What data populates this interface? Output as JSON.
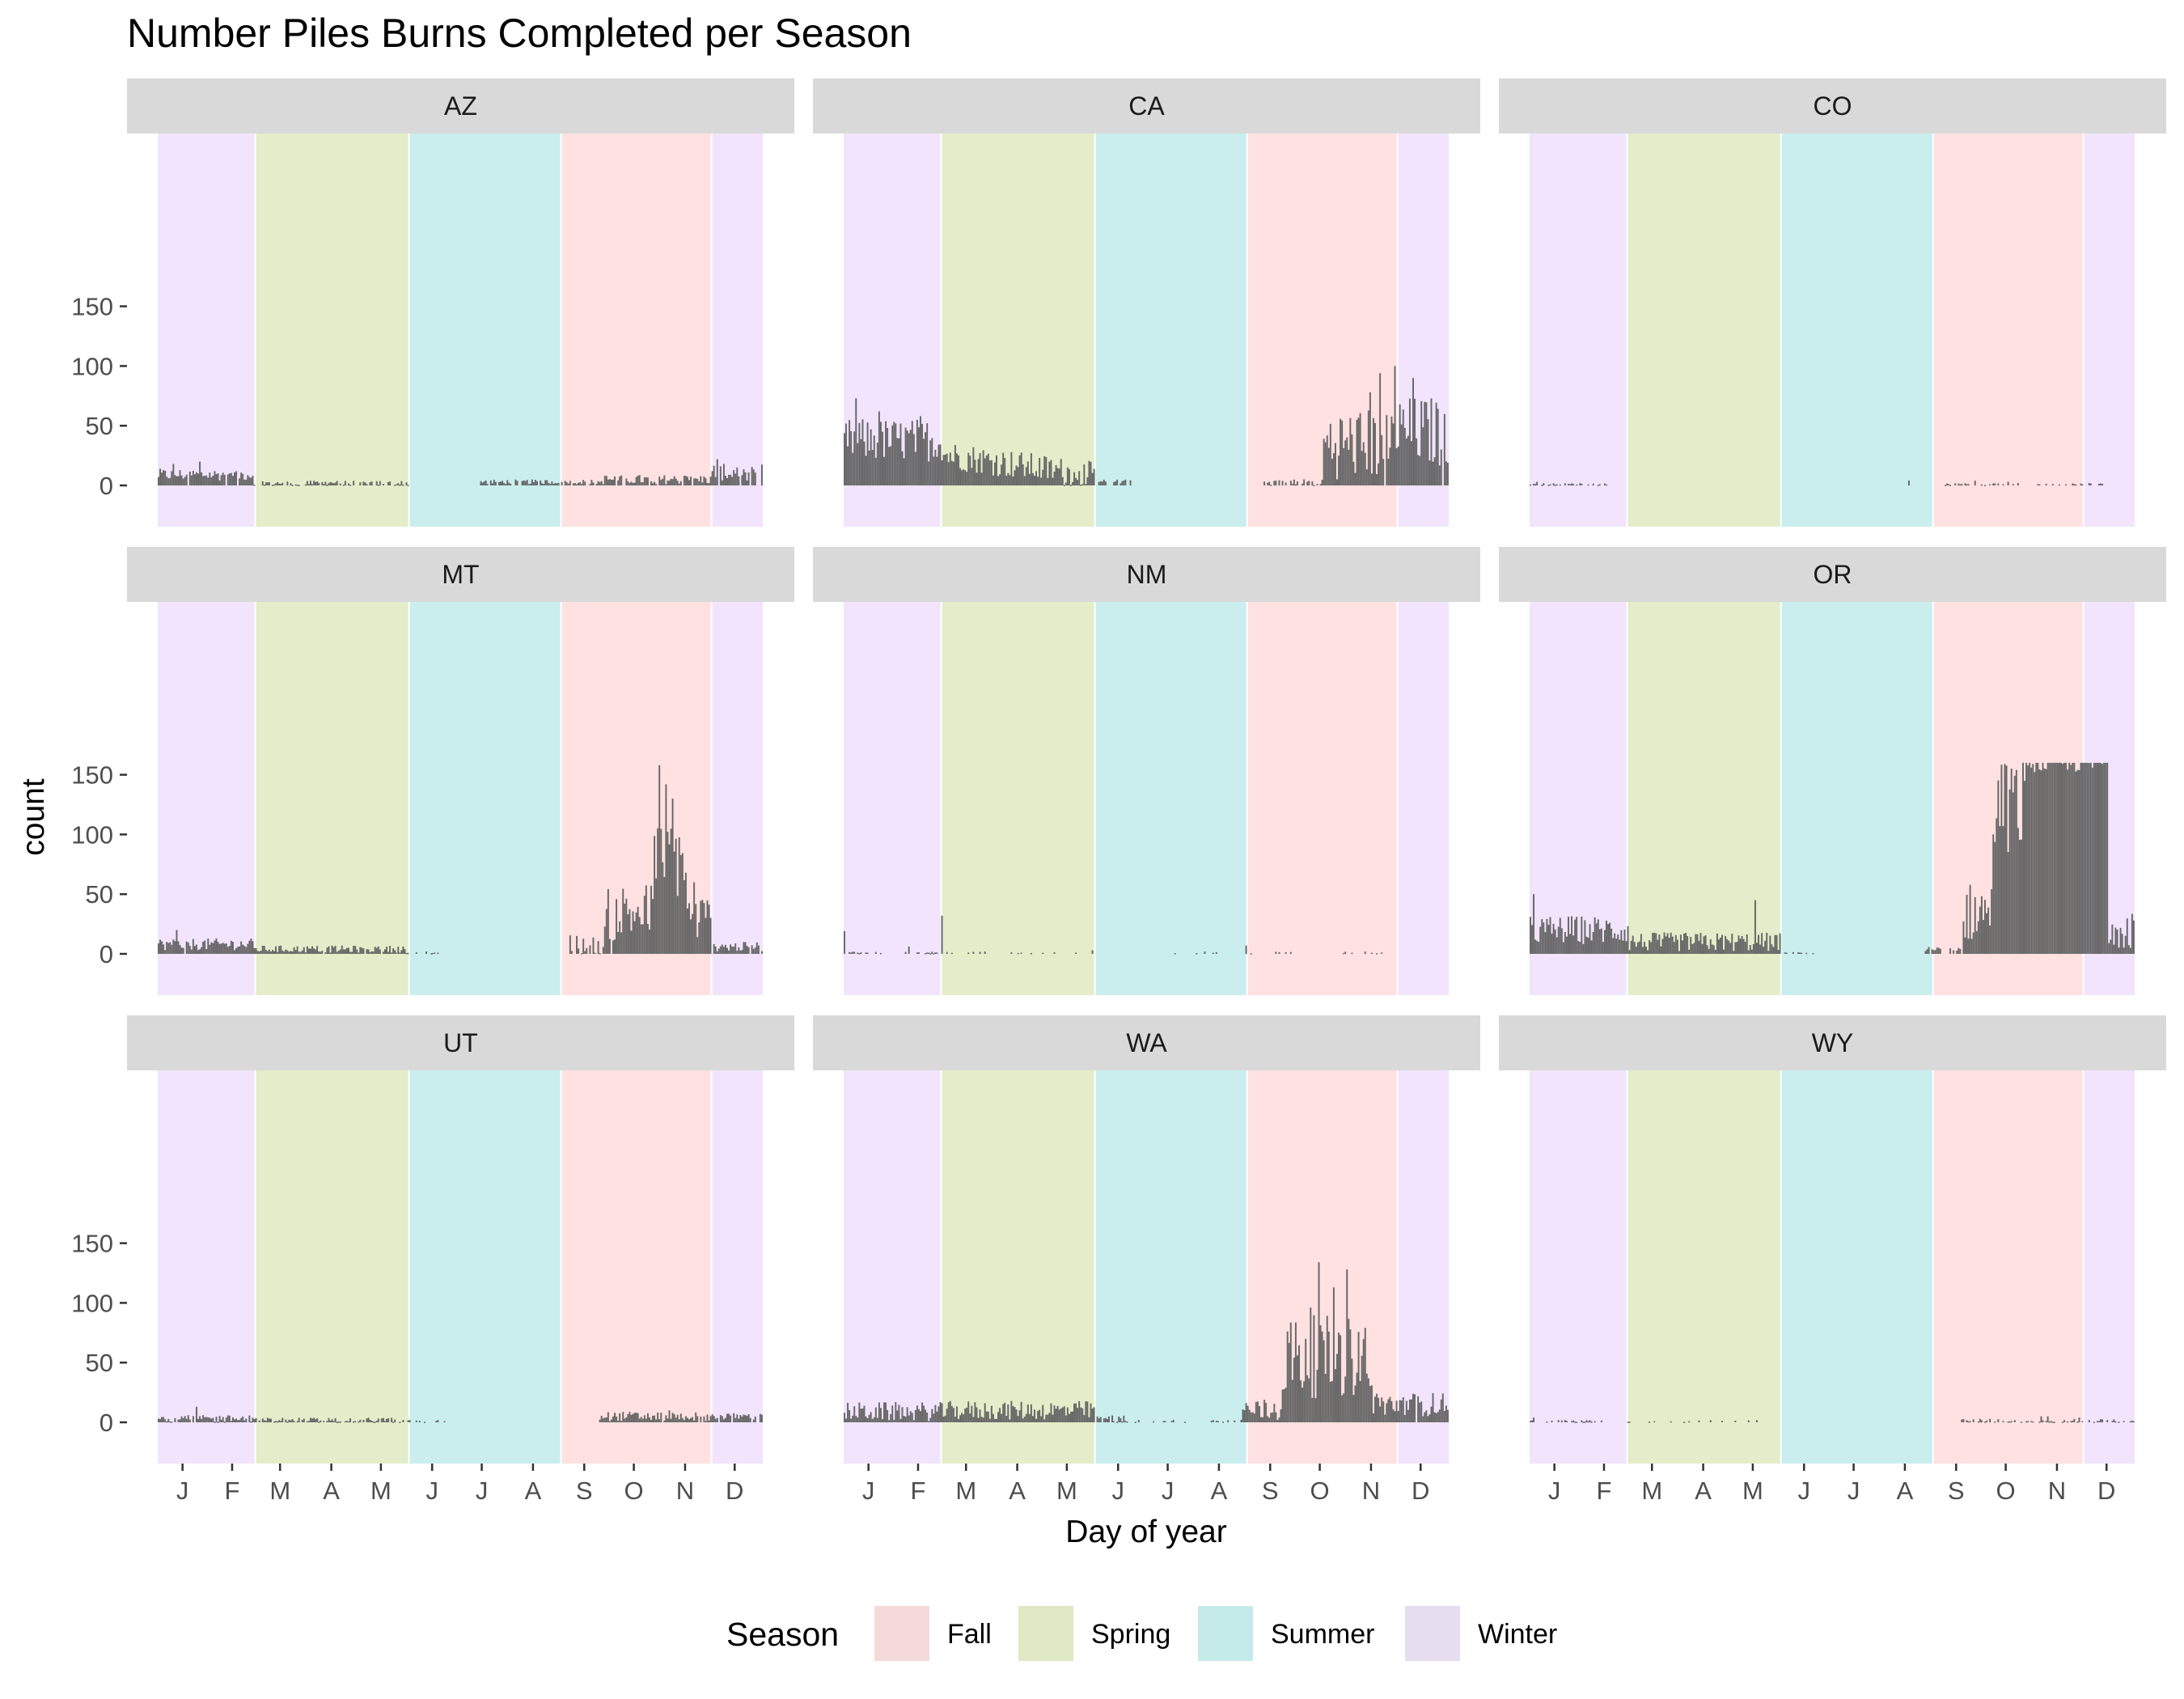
{
  "chart_data": {
    "type": "bar",
    "title": "Number Piles Burns Completed per Season",
    "xlabel": "Day of year",
    "ylabel": "count",
    "ylim": [
      0,
      160
    ],
    "xlim": [
      1,
      366
    ],
    "y_ticks": [
      0,
      50,
      100,
      150
    ],
    "x_tick_labels": [
      "J",
      "F",
      "M",
      "A",
      "M",
      "J",
      "J",
      "A",
      "S",
      "O",
      "N",
      "D"
    ],
    "x_tick_days": [
      16,
      46,
      75,
      106,
      136,
      167,
      197,
      228,
      259,
      289,
      320,
      350
    ],
    "grid": false,
    "legend_position": "bottom",
    "legend_title": "Season",
    "seasons": [
      {
        "name": "Fall",
        "color": "#FFE1E1",
        "legend_color": "#F5DADA",
        "ranges": [
          [
            245,
            335
          ]
        ]
      },
      {
        "name": "Spring",
        "color": "#E3EDC9",
        "legend_color": "#E0E8C6",
        "ranges": [
          [
            60,
            152
          ]
        ]
      },
      {
        "name": "Summer",
        "color": "#CAEEEE",
        "legend_color": "#C5EAEA",
        "ranges": [
          [
            153,
            244
          ]
        ]
      },
      {
        "name": "Winter",
        "color": "#F1E4FC",
        "legend_color": "#E6DDF1",
        "ranges": [
          [
            1,
            59
          ],
          [
            336,
            366
          ]
        ]
      }
    ],
    "bar_color": "#666666",
    "panels": [
      {
        "name": "AZ",
        "segments": [
          {
            "from": 1,
            "to": 58,
            "level": 9,
            "amp": 5,
            "density": 0.95
          },
          {
            "from": 59,
            "to": 152,
            "level": 2,
            "amp": 2,
            "density": 0.7
          },
          {
            "from": 195,
            "to": 270,
            "level": 3,
            "amp": 2,
            "density": 0.8
          },
          {
            "from": 271,
            "to": 335,
            "level": 5,
            "amp": 4,
            "density": 0.85
          },
          {
            "from": 336,
            "to": 366,
            "level": 11,
            "amp": 7,
            "density": 0.9
          }
        ],
        "spikes": [
          [
            10,
            18
          ],
          [
            26,
            20
          ],
          [
            339,
            22
          ],
          [
            351,
            15
          ]
        ]
      },
      {
        "name": "CA",
        "segments": [
          {
            "from": 1,
            "to": 60,
            "level": 38,
            "amp": 18,
            "density": 1
          },
          {
            "from": 61,
            "to": 152,
            "level": 26,
            "amp": 12,
            "density": 1,
            "end_level": 8
          },
          {
            "from": 153,
            "to": 175,
            "level": 3,
            "amp": 2,
            "density": 0.6
          },
          {
            "from": 255,
            "to": 290,
            "level": 3,
            "amp": 3,
            "density": 0.6
          },
          {
            "from": 291,
            "to": 335,
            "level": 35,
            "amp": 30,
            "density": 0.95
          },
          {
            "from": 336,
            "to": 366,
            "level": 45,
            "amp": 30,
            "density": 0.95
          }
        ],
        "spikes": [
          [
            8,
            73
          ],
          [
            22,
            62
          ],
          [
            47,
            58
          ],
          [
            319,
            78
          ],
          [
            325,
            94
          ],
          [
            334,
            100
          ],
          [
            345,
            90
          ]
        ]
      },
      {
        "name": "CO",
        "segments": [
          {
            "from": 1,
            "to": 50,
            "level": 1,
            "amp": 1,
            "density": 0.5
          },
          {
            "from": 250,
            "to": 350,
            "level": 1,
            "amp": 1,
            "density": 0.25
          }
        ],
        "spikes": [
          [
            5,
            3
          ],
          [
            230,
            4
          ],
          [
            270,
            4
          ],
          [
            290,
            3
          ]
        ]
      },
      {
        "name": "MT",
        "segments": [
          {
            "from": 1,
            "to": 58,
            "level": 8,
            "amp": 5,
            "density": 0.95
          },
          {
            "from": 59,
            "to": 150,
            "level": 4,
            "amp": 3,
            "density": 0.95
          },
          {
            "from": 151,
            "to": 170,
            "level": 1,
            "amp": 1,
            "density": 0.5
          },
          {
            "from": 250,
            "to": 270,
            "level": 8,
            "amp": 8,
            "density": 0.7
          },
          {
            "from": 271,
            "to": 300,
            "level": 35,
            "amp": 25,
            "density": 0.95
          },
          {
            "from": 301,
            "to": 320,
            "level": 80,
            "amp": 35,
            "density": 1
          },
          {
            "from": 321,
            "to": 335,
            "level": 30,
            "amp": 20,
            "density": 0.95
          },
          {
            "from": 336,
            "to": 366,
            "level": 6,
            "amp": 4,
            "density": 0.9
          }
        ],
        "spikes": [
          [
            12,
            20
          ],
          [
            304,
            158
          ],
          [
            308,
            142
          ],
          [
            312,
            130
          ],
          [
            325,
            60
          ]
        ]
      },
      {
        "name": "NM",
        "segments": [
          {
            "from": 1,
            "to": 60,
            "level": 1,
            "amp": 1,
            "density": 0.35
          },
          {
            "from": 61,
            "to": 150,
            "level": 1,
            "amp": 1,
            "density": 0.15
          },
          {
            "from": 200,
            "to": 330,
            "level": 1,
            "amp": 1,
            "density": 0.1
          }
        ],
        "spikes": [
          [
            1,
            19
          ],
          [
            40,
            6
          ],
          [
            60,
            32
          ],
          [
            151,
            3
          ],
          [
            244,
            7
          ]
        ]
      },
      {
        "name": "OR",
        "segments": [
          {
            "from": 1,
            "to": 60,
            "level": 20,
            "amp": 12,
            "density": 1
          },
          {
            "from": 61,
            "to": 152,
            "level": 10,
            "amp": 8,
            "density": 1
          },
          {
            "from": 153,
            "to": 175,
            "level": 1,
            "amp": 1,
            "density": 0.3
          },
          {
            "from": 240,
            "to": 262,
            "level": 3,
            "amp": 3,
            "density": 0.5
          },
          {
            "from": 263,
            "to": 280,
            "level": 35,
            "amp": 25,
            "density": 1
          },
          {
            "from": 281,
            "to": 300,
            "level": 125,
            "amp": 40,
            "density": 1
          },
          {
            "from": 301,
            "to": 350,
            "level": 160,
            "amp": 8,
            "density": 1
          },
          {
            "from": 351,
            "to": 366,
            "level": 25,
            "amp": 20,
            "density": 1
          }
        ],
        "spikes": [
          [
            3,
            50
          ],
          [
            137,
            45
          ],
          [
            348,
            158
          ]
        ]
      },
      {
        "name": "UT",
        "segments": [
          {
            "from": 1,
            "to": 60,
            "level": 3,
            "amp": 3,
            "density": 0.9
          },
          {
            "from": 61,
            "to": 150,
            "level": 2,
            "amp": 2,
            "density": 0.8
          },
          {
            "from": 151,
            "to": 175,
            "level": 1,
            "amp": 1,
            "density": 0.2
          },
          {
            "from": 268,
            "to": 335,
            "level": 5,
            "amp": 4,
            "density": 0.95
          },
          {
            "from": 336,
            "to": 366,
            "level": 5,
            "amp": 3,
            "density": 0.9
          }
        ],
        "spikes": [
          [
            24,
            13
          ],
          [
            310,
            10
          ]
        ]
      },
      {
        "name": "WA",
        "segments": [
          {
            "from": 1,
            "to": 60,
            "level": 9,
            "amp": 8,
            "density": 1
          },
          {
            "from": 61,
            "to": 152,
            "level": 10,
            "amp": 8,
            "density": 1
          },
          {
            "from": 153,
            "to": 170,
            "level": 3,
            "amp": 3,
            "density": 0.7
          },
          {
            "from": 171,
            "to": 240,
            "level": 1,
            "amp": 1,
            "density": 0.2
          },
          {
            "from": 241,
            "to": 265,
            "level": 10,
            "amp": 10,
            "density": 0.9
          },
          {
            "from": 266,
            "to": 320,
            "level": 55,
            "amp": 35,
            "density": 1
          },
          {
            "from": 321,
            "to": 366,
            "level": 15,
            "amp": 10,
            "density": 0.95
          }
        ],
        "spikes": [
          [
            288,
            134
          ],
          [
            297,
            113
          ],
          [
            305,
            128
          ],
          [
            283,
            96
          ]
        ]
      },
      {
        "name": "WY",
        "segments": [
          {
            "from": 1,
            "to": 45,
            "level": 1,
            "amp": 1,
            "density": 0.5
          },
          {
            "from": 60,
            "to": 140,
            "level": 1,
            "amp": 1,
            "density": 0.15
          },
          {
            "from": 260,
            "to": 366,
            "level": 1,
            "amp": 2,
            "density": 0.45
          }
        ],
        "spikes": [
          [
            3,
            4
          ],
          [
            310,
            5
          ],
          [
            314,
            5
          ],
          [
            333,
            4
          ]
        ]
      }
    ]
  }
}
